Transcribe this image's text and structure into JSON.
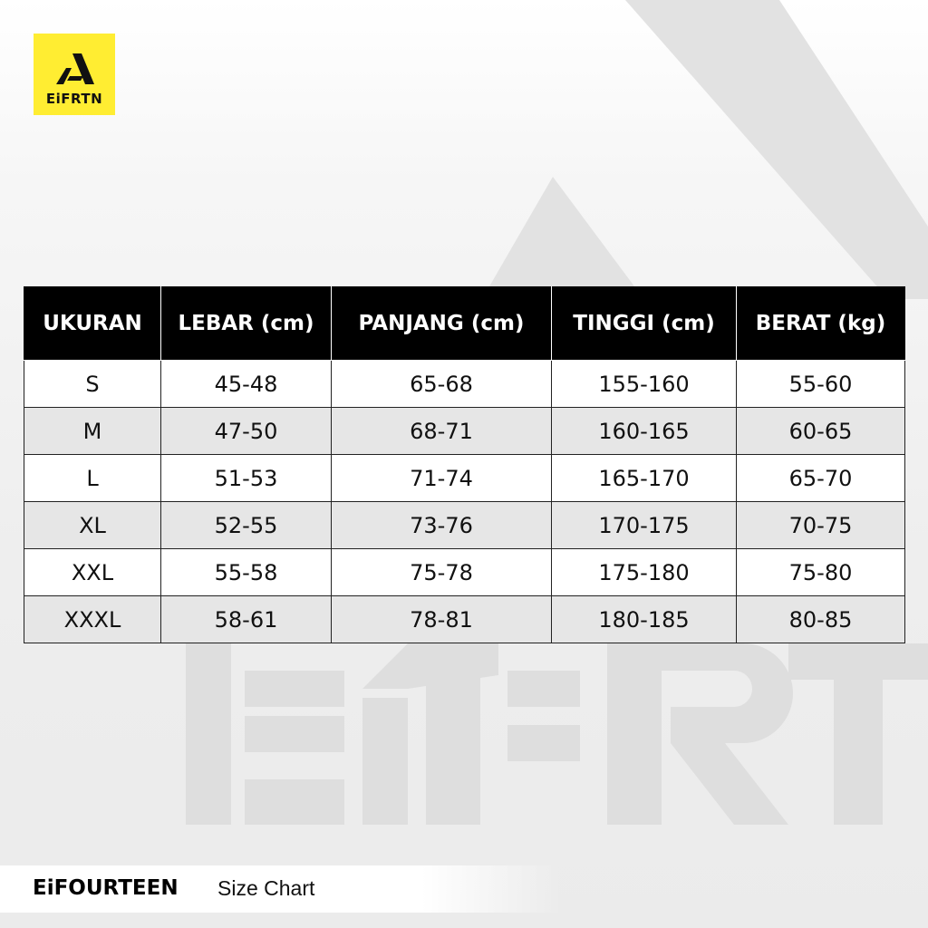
{
  "logo": {
    "text": "EiFRTN",
    "background": "#ffed32"
  },
  "watermark": {
    "text": "EiFRTN"
  },
  "table": {
    "headers": [
      "UKURAN",
      "LEBAR (cm)",
      "PANJANG (cm)",
      "TINGGI (cm)",
      "BERAT (kg)"
    ],
    "rows": [
      [
        "S",
        "45-48",
        "65-68",
        "155-160",
        "55-60"
      ],
      [
        "M",
        "47-50",
        "68-71",
        "160-165",
        "60-65"
      ],
      [
        "L",
        "51-53",
        "71-74",
        "165-170",
        "65-70"
      ],
      [
        "XL",
        "52-55",
        "73-76",
        "170-175",
        "70-75"
      ],
      [
        "XXL",
        "55-58",
        "75-78",
        "175-180",
        "75-80"
      ],
      [
        "XXXL",
        "58-61",
        "78-81",
        "180-185",
        "80-85"
      ]
    ]
  },
  "footer": {
    "brand": "EiFOURTEEN",
    "title": "Size Chart"
  }
}
